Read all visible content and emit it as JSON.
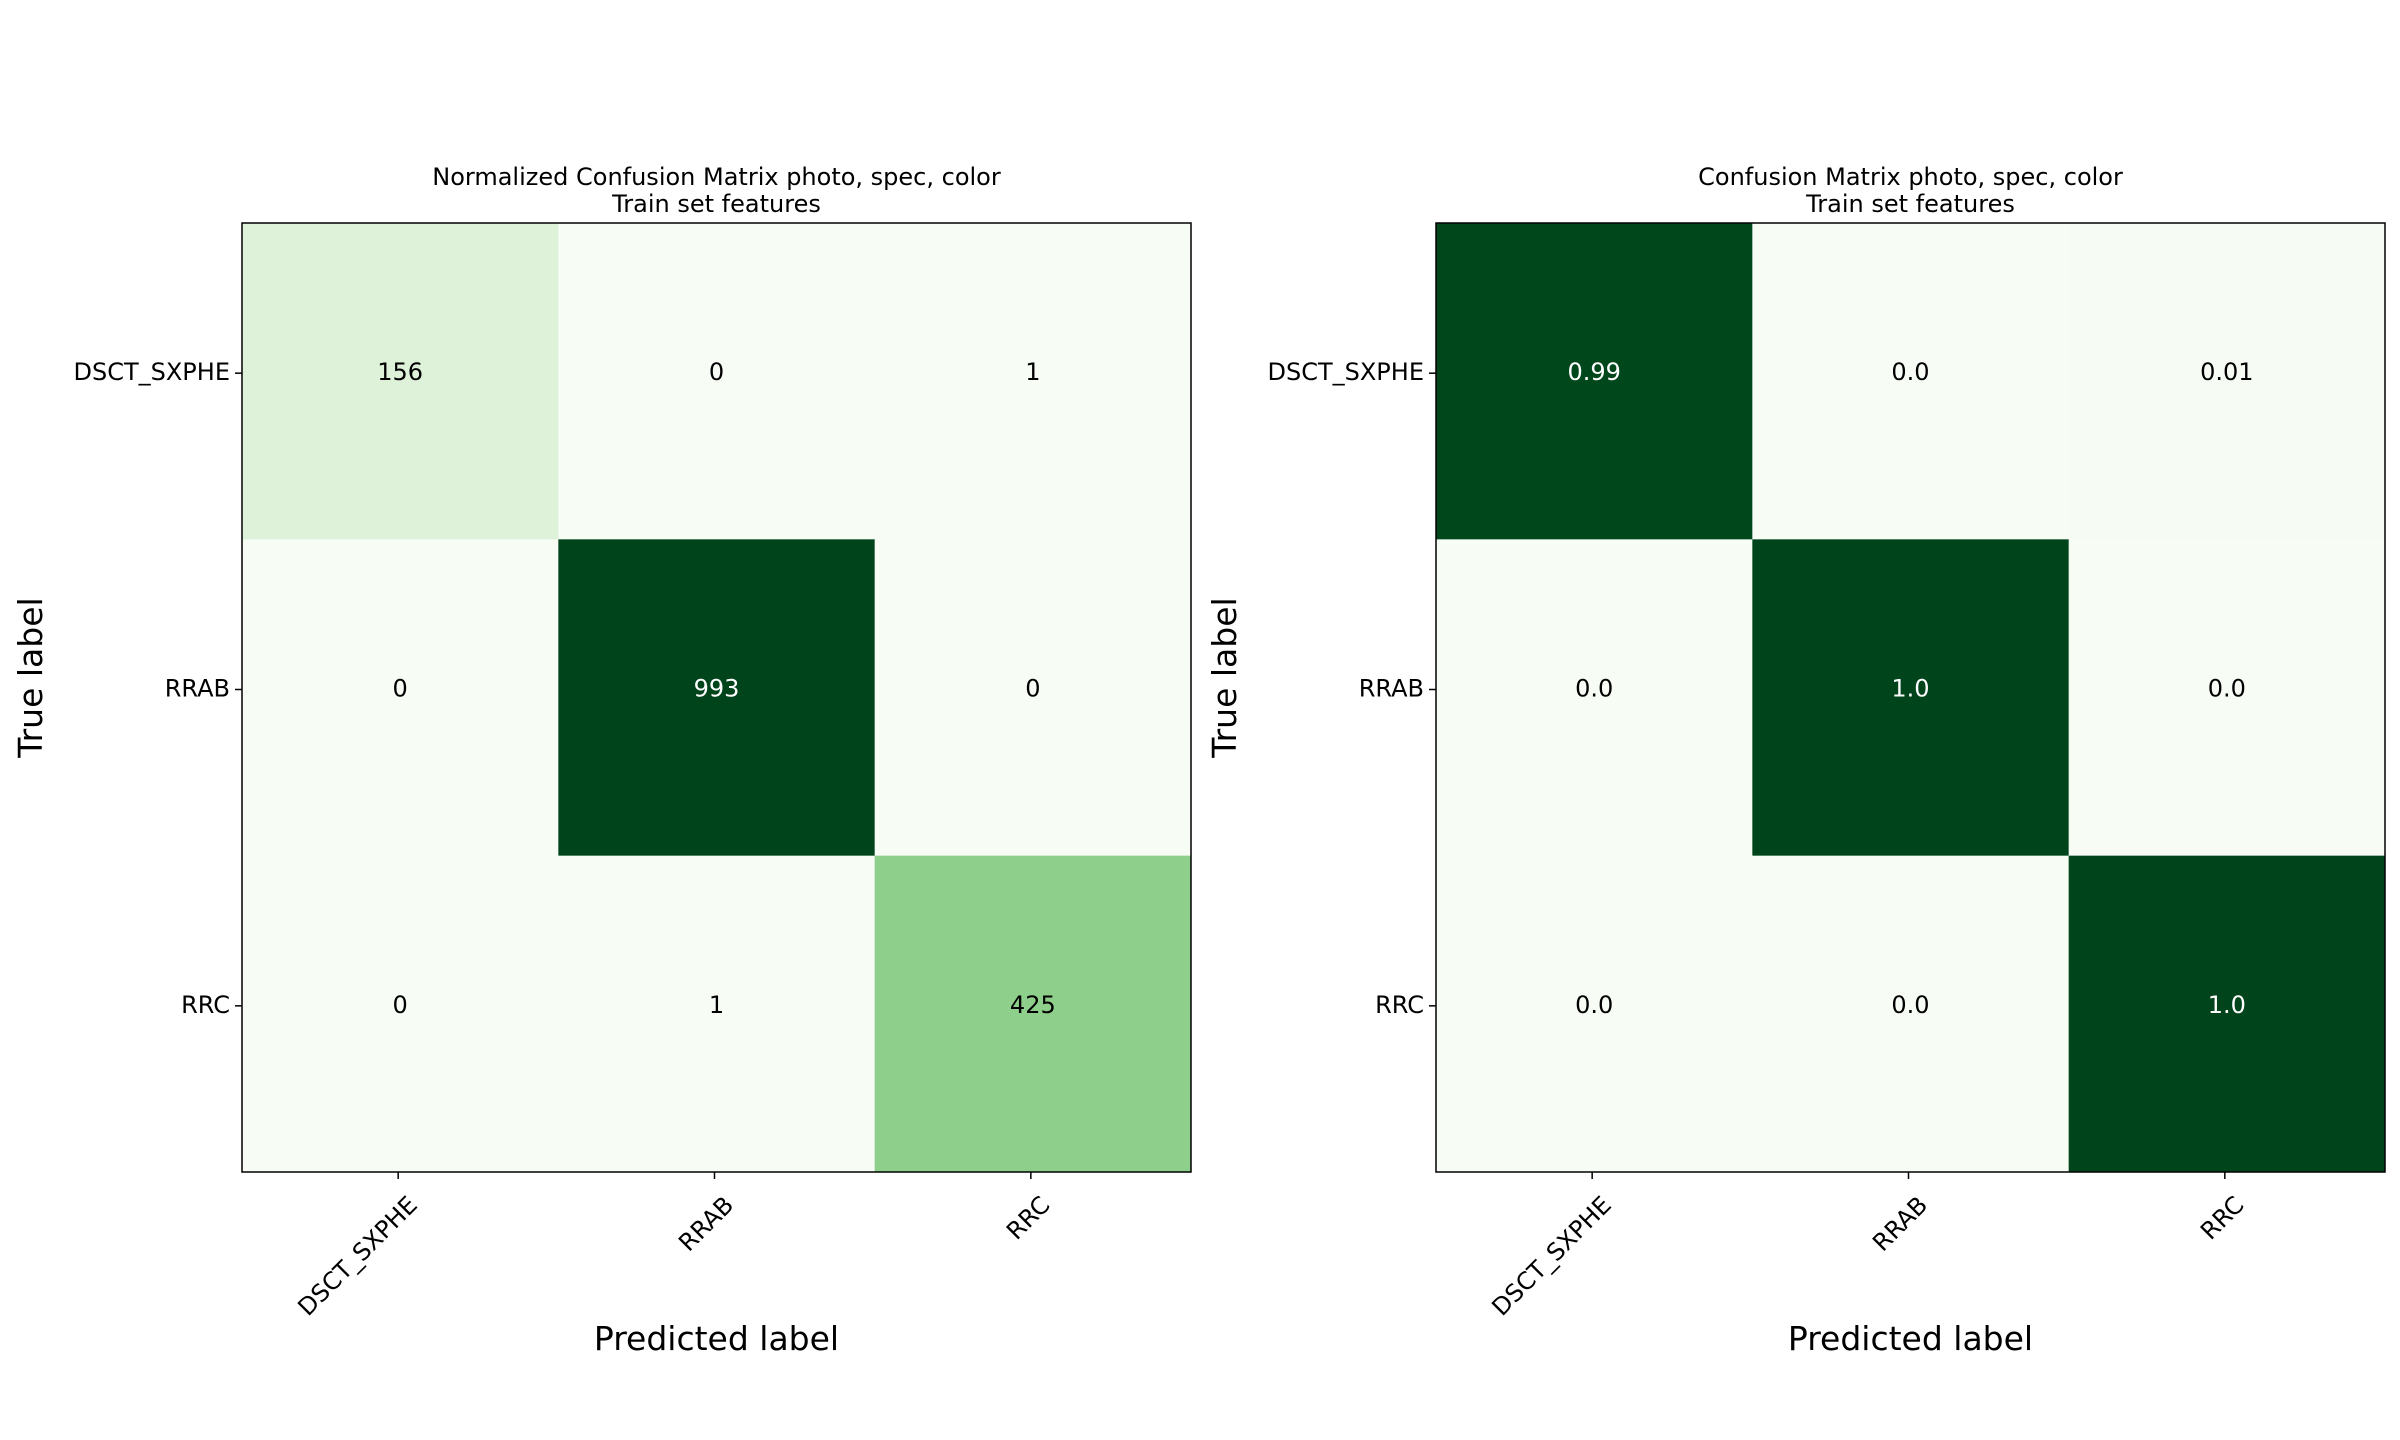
{
  "chart_data": [
    {
      "type": "heatmap",
      "title": "Normalized Confusion Matrix photo, spec, color\nTrain set features",
      "xlabel": "Predicted label",
      "ylabel": "True label",
      "x_categories": [
        "DSCT_SXPHE",
        "RRAB",
        "RRC"
      ],
      "y_categories": [
        "DSCT_SXPHE",
        "RRAB",
        "RRC"
      ],
      "values": [
        [
          156,
          0,
          1
        ],
        [
          0,
          993,
          0
        ],
        [
          0,
          1,
          425
        ]
      ],
      "labels": [
        [
          "156",
          "0",
          "1"
        ],
        [
          "0",
          "993",
          "0"
        ],
        [
          "0",
          "1",
          "425"
        ]
      ],
      "colormap": "Greens",
      "vmin": 0,
      "vmax": 993,
      "text_color_light": "#ffffff",
      "text_color_dark": "#000000"
    },
    {
      "type": "heatmap",
      "title": "Confusion Matrix photo, spec, color\nTrain set features",
      "xlabel": "Predicted label",
      "ylabel": "True label",
      "x_categories": [
        "DSCT_SXPHE",
        "RRAB",
        "RRC"
      ],
      "y_categories": [
        "DSCT_SXPHE",
        "RRAB",
        "RRC"
      ],
      "values": [
        [
          0.99,
          0.0,
          0.01
        ],
        [
          0.0,
          1.0,
          0.0
        ],
        [
          0.0,
          0.0,
          1.0
        ]
      ],
      "labels": [
        [
          "0.99",
          "0.0",
          "0.01"
        ],
        [
          "0.0",
          "1.0",
          "0.0"
        ],
        [
          "0.0",
          "0.0",
          "1.0"
        ]
      ],
      "colormap": "Greens",
      "vmin": 0,
      "vmax": 1.0,
      "text_color_light": "#ffffff",
      "text_color_dark": "#000000"
    }
  ]
}
